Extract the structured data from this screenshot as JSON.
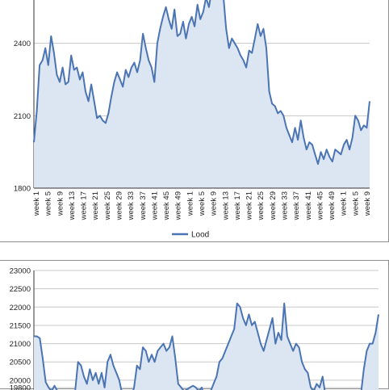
{
  "chart_data": [
    {
      "type": "area",
      "title": "",
      "xlabel": "",
      "ylabel": "",
      "ylim": [
        1800,
        2700
      ],
      "y_ticks": [
        1800,
        2100,
        2400
      ],
      "x_tick_labels": [
        "week 1",
        "week 5",
        "week 9",
        "week 13",
        "week 17",
        "week 21",
        "week 25",
        "week 29",
        "week 33",
        "week 37",
        "week 41",
        "week 45",
        "week 49",
        "week 1",
        "week 5",
        "week 9",
        "week 13",
        "week 17",
        "week 21",
        "week 25",
        "week 29",
        "week 33",
        "week 37",
        "week 41",
        "week 45",
        "week 49",
        "week 1",
        "week 5",
        "week 9"
      ],
      "legend_position": "bottom",
      "grid": true,
      "colors": {
        "line": "#4a74b3",
        "fill": "#dce6f2"
      },
      "series": [
        {
          "name": "Lood",
          "x_points": 118,
          "values": [
            1990,
            2120,
            2310,
            2330,
            2380,
            2310,
            2430,
            2360,
            2270,
            2240,
            2300,
            2230,
            2240,
            2350,
            2290,
            2300,
            2250,
            2280,
            2200,
            2160,
            2230,
            2160,
            2090,
            2100,
            2080,
            2070,
            2110,
            2180,
            2240,
            2280,
            2250,
            2220,
            2290,
            2260,
            2300,
            2320,
            2280,
            2330,
            2440,
            2380,
            2330,
            2300,
            2240,
            2400,
            2460,
            2510,
            2550,
            2500,
            2460,
            2540,
            2430,
            2440,
            2490,
            2420,
            2480,
            2510,
            2470,
            2560,
            2500,
            2530,
            2590,
            2550,
            2620,
            2600,
            2680,
            2590,
            2600,
            2460,
            2380,
            2420,
            2400,
            2380,
            2350,
            2330,
            2300,
            2370,
            2360,
            2420,
            2480,
            2430,
            2460,
            2380,
            2200,
            2150,
            2140,
            2110,
            2120,
            2100,
            2050,
            2020,
            1990,
            2050,
            2000,
            2080,
            2010,
            1960,
            1990,
            1980,
            1940,
            1900,
            1950,
            1920,
            1960,
            1930,
            1910,
            1960,
            1950,
            1940,
            1980,
            2000,
            1960,
            2010,
            2100,
            2080,
            2040,
            2060,
            2050,
            2160
          ]
        }
      ]
    },
    {
      "type": "area",
      "title": "",
      "xlabel": "",
      "ylabel": "",
      "ylim": [
        19600,
        23000
      ],
      "y_ticks": [
        19800,
        20000,
        20500,
        21000,
        21500,
        22000,
        22500,
        23000
      ],
      "grid": true,
      "colors": {
        "line": "#4a74b3",
        "fill": "#dce6f2"
      },
      "series": [
        {
          "x_points": 118,
          "values": [
            21200,
            21200,
            21150,
            20600,
            19950,
            19800,
            19700,
            19850,
            19700,
            19500,
            19600,
            19400,
            19500,
            19600,
            19700,
            20500,
            20400,
            20100,
            19900,
            20300,
            20000,
            20200,
            19900,
            20200,
            19800,
            20500,
            20700,
            20400,
            20200,
            20000,
            19600,
            19500,
            19600,
            19500,
            19800,
            20400,
            20300,
            20900,
            20800,
            20500,
            20700,
            20500,
            20800,
            20900,
            21000,
            20800,
            20900,
            21200,
            20600,
            19900,
            19800,
            19700,
            19750,
            19800,
            19850,
            19800,
            19700,
            19800,
            19500,
            19600,
            19700,
            19900,
            20100,
            20500,
            20600,
            20800,
            21000,
            21200,
            21400,
            22100,
            22000,
            21700,
            21500,
            21800,
            21500,
            21600,
            21300,
            21000,
            20800,
            21100,
            21400,
            21700,
            21000,
            21300,
            21100,
            22100,
            21200,
            21000,
            20800,
            21000,
            20900,
            20500,
            20300,
            20200,
            19800,
            19700,
            19900,
            19800,
            20100,
            19600,
            19700,
            19500,
            19550,
            19600,
            19500,
            19450,
            19500,
            19600,
            19550,
            19500,
            19700,
            19600,
            20300,
            20800,
            21000,
            21000,
            21300,
            21800
          ]
        }
      ]
    }
  ]
}
